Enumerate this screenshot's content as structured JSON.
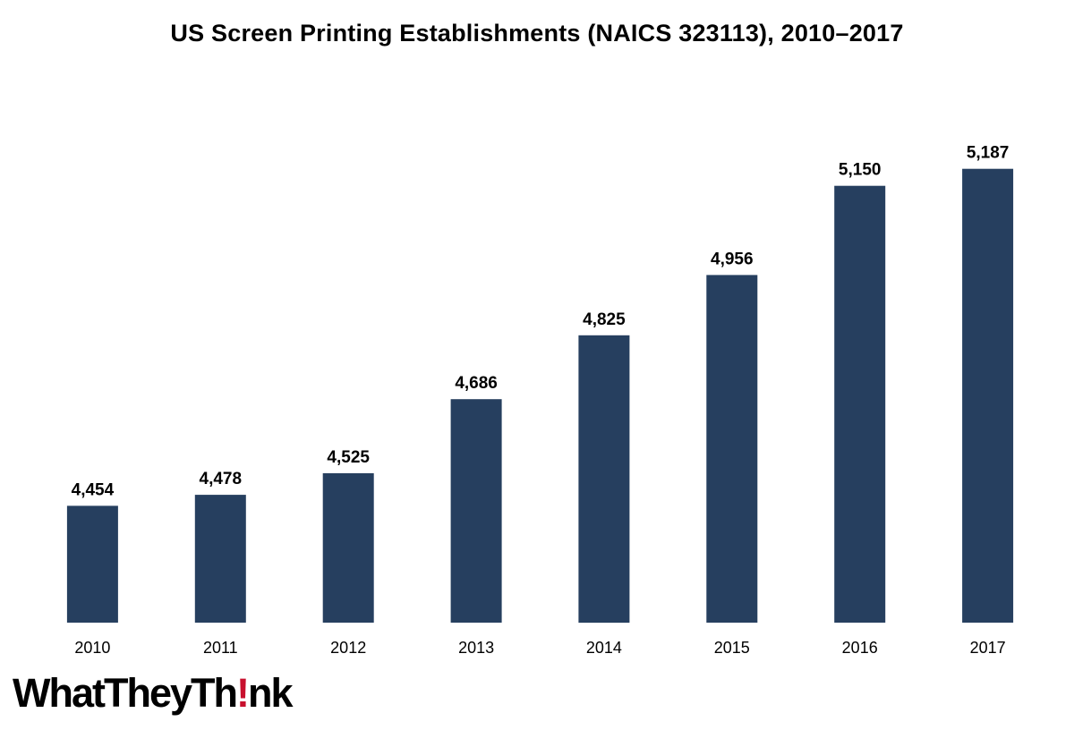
{
  "chart_data": {
    "type": "bar",
    "title": "US Screen Printing Establishments (NAICS 323113), 2010–2017",
    "xlabel": "",
    "ylabel": "",
    "categories": [
      "2010",
      "2011",
      "2012",
      "2013",
      "2014",
      "2015",
      "2016",
      "2017"
    ],
    "values": [
      4454,
      4478,
      4525,
      4686,
      4825,
      4956,
      5150,
      5187
    ],
    "value_labels": [
      "4,454",
      "4,478",
      "4,525",
      "4,686",
      "4,825",
      "4,956",
      "5,150",
      "5,187"
    ],
    "ylim": [
      4200,
      5200
    ],
    "grid": false,
    "legend": "none",
    "bar_color": "#263f5f"
  },
  "logo": {
    "part1": "WhatTheyTh",
    "bang": "!",
    "part2": "nk",
    "accent_color": "#c8102e"
  }
}
